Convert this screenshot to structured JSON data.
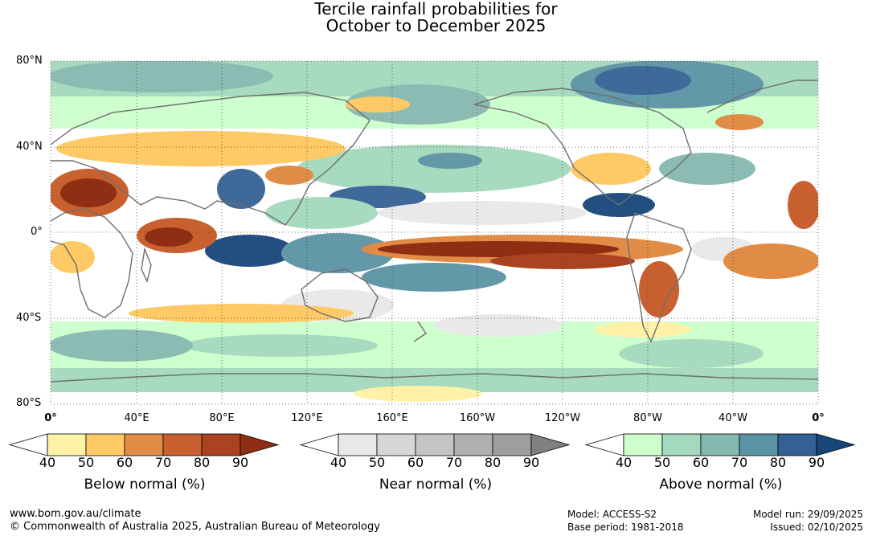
{
  "title": {
    "line1": "Tercile rainfall probabilities for",
    "line2": "October to December 2025"
  },
  "map": {
    "lat_labels": [
      "80°N",
      "40°N",
      "0°",
      "40°S",
      "80°S"
    ],
    "lon_labels": [
      "0°",
      "40°E",
      "80°E",
      "120°E",
      "160°E",
      "160°W",
      "120°W",
      "80°W",
      "40°W",
      "0°"
    ],
    "ocean_background": "#ffffff",
    "coastline_color": "#6e6e6e",
    "grid": "dotted"
  },
  "legends": [
    {
      "title": "Below normal (%)",
      "ticks": [
        "40",
        "50",
        "60",
        "70",
        "80",
        "90"
      ],
      "colors": [
        "#fff2a8",
        "#ffc966",
        "#e08c46",
        "#c8602f",
        "#aa4420",
        "#8f2e12"
      ]
    },
    {
      "title": "Near normal (%)",
      "ticks": [
        "40",
        "50",
        "60",
        "70",
        "80",
        "90"
      ],
      "colors": [
        "#e8e8e8",
        "#d6d6d6",
        "#c4c4c4",
        "#b0b0b0",
        "#9e9e9e",
        "#808080"
      ]
    },
    {
      "title": "Above normal (%)",
      "ticks": [
        "40",
        "50",
        "60",
        "70",
        "80",
        "90"
      ],
      "colors": [
        "#ccffcc",
        "#a3d9bc",
        "#85b8ae",
        "#5a93a3",
        "#346194",
        "#17467a"
      ]
    }
  ],
  "footer": {
    "url": "www.bom.gov.au/climate",
    "copyright": "© Commonwealth of Australia 2025, Australian Bureau of Meteorology",
    "model": "Model: ACCESS-S2",
    "base_period": "Base period: 1981-2018",
    "model_run": "Model run: 29/09/2025",
    "issued": "Issued: 02/10/2025"
  }
}
